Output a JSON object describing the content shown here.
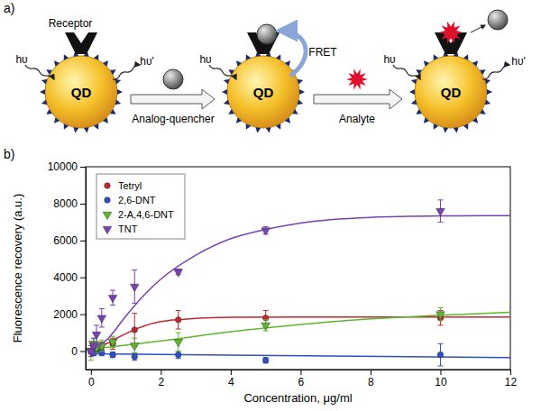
{
  "diagram": {
    "panel_labels": [
      "a)",
      "b)"
    ],
    "receptor": "Receptor",
    "qd": "QD",
    "excitation": "hυ",
    "emission": "hυ'",
    "quencher": "Analog-quencher",
    "fret": "FRET",
    "analyte": "Analyte"
  },
  "chart_data": {
    "type": "scatter",
    "x_label": "Concentration, μg/ml",
    "y_label": "Fluorescence recovery (a.u.)",
    "x": [
      0,
      0.08,
      0.16,
      0.31,
      0.625,
      1.25,
      2.5,
      5,
      10
    ],
    "xlim": [
      -0.15,
      12
    ],
    "xticks": [
      0,
      2,
      4,
      6,
      8,
      10,
      12
    ],
    "ylim": [
      -1000,
      10000
    ],
    "yticks": [
      0,
      2000,
      4000,
      6000,
      8000,
      10000
    ],
    "grid": false,
    "legend": "upper left",
    "series": [
      {
        "name": "Tetryl",
        "color": "#c0282d",
        "marker": "circle",
        "values": [
          0,
          100,
          200,
          300,
          400,
          1150,
          1700,
          1800,
          1800
        ],
        "errors": [
          150,
          150,
          200,
          200,
          300,
          900,
          500,
          400,
          400
        ],
        "fit": {
          "x": [
            0,
            0.5,
            1,
            1.5,
            2,
            3,
            4,
            6,
            12
          ],
          "values": [
            0,
            450,
            950,
            1350,
            1600,
            1770,
            1830,
            1850,
            1850
          ]
        }
      },
      {
        "name": "2,6-DNT",
        "color": "#2f4fc4",
        "marker": "circle",
        "values": [
          0,
          -100,
          100,
          -100,
          -200,
          -300,
          -200,
          -500,
          -200
        ],
        "errors": [
          150,
          150,
          150,
          150,
          150,
          200,
          200,
          150,
          600
        ],
        "fit": {
          "x": [
            0,
            12
          ],
          "values": [
            -150,
            -350
          ]
        }
      },
      {
        "name": "2-A,4,6-DNT",
        "color": "#5cb82c",
        "marker": "triangle-down",
        "values": [
          0,
          400,
          200,
          300,
          500,
          300,
          500,
          1400,
          2000
        ],
        "errors": [
          500,
          300,
          300,
          300,
          300,
          400,
          500,
          300,
          350
        ],
        "fit": {
          "x": [
            0,
            2,
            4,
            6,
            8,
            10,
            12
          ],
          "values": [
            100,
            550,
            1050,
            1450,
            1750,
            1950,
            2100
          ]
        }
      },
      {
        "name": "TNT",
        "color": "#7a3fb2",
        "marker": "triangle-down",
        "values": [
          0,
          300,
          900,
          1800,
          2900,
          3500,
          4300,
          6550,
          7600
        ],
        "errors": [
          300,
          400,
          500,
          500,
          400,
          900,
          150,
          200,
          600
        ],
        "fit": {
          "x": [
            0,
            0.5,
            1,
            1.5,
            2,
            3,
            4,
            5,
            6,
            8,
            10,
            12
          ],
          "values": [
            0,
            700,
            1900,
            3000,
            3900,
            5200,
            6100,
            6600,
            6950,
            7250,
            7330,
            7350
          ]
        }
      }
    ]
  }
}
